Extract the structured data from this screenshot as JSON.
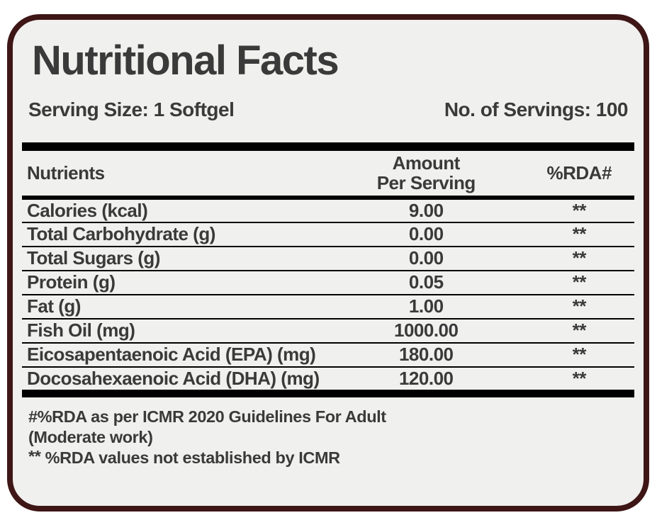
{
  "label": {
    "title": "Nutritional Facts",
    "serving_size": "Serving Size: 1 Softgel",
    "servings": "No. of Servings: 100"
  },
  "table": {
    "headers": {
      "nutrients": "Nutrients",
      "amount_line1": "Amount",
      "amount_line2": "Per Serving",
      "rda": "%RDA#"
    },
    "rows": [
      {
        "name": "Calories (kcal)",
        "amount": "9.00",
        "rda": "**"
      },
      {
        "name": "Total Carbohydrate (g)",
        "amount": "0.00",
        "rda": "**"
      },
      {
        "name": "Total Sugars (g)",
        "amount": "0.00",
        "rda": "**"
      },
      {
        "name": "Protein (g)",
        "amount": "0.05",
        "rda": "**"
      },
      {
        "name": "Fat (g)",
        "amount": "1.00",
        "rda": "**"
      },
      {
        "name": "Fish Oil (mg)",
        "amount": "1000.00",
        "rda": "**"
      },
      {
        "name": "Eicosapentaenoic Acid (EPA) (mg)",
        "amount": "180.00",
        "rda": "**"
      },
      {
        "name": "Docosahexaenoic Acid (DHA) (mg)",
        "amount": "120.00",
        "rda": "**"
      }
    ]
  },
  "footnotes": {
    "line1": "#%RDA as per ICMR 2020 Guidelines For Adult",
    "line2": "(Moderate work)",
    "line3_marker": "**",
    "line3_text": "%RDA values not established by ICMR"
  },
  "colors": {
    "card_border": "#3e1616",
    "card_background": "#f0f0ee",
    "text": "#3a3a3a",
    "rule": "#000000"
  }
}
